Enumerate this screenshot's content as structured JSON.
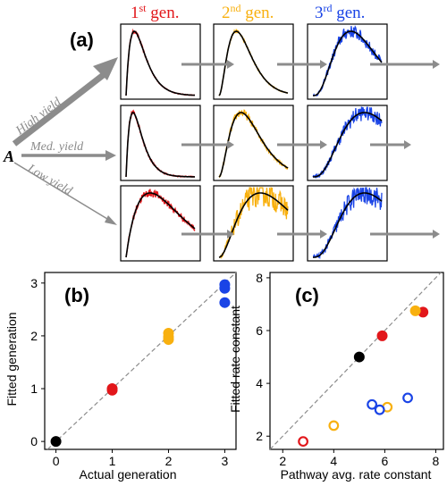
{
  "colors": {
    "gen1": "#e2171b",
    "gen2": "#f8b00f",
    "gen3": "#1a44e6",
    "gen0": "#000000",
    "arrow": "#8c8c8c",
    "diagonal": "#8c8c8c"
  },
  "panel_a": {
    "label": "(a)",
    "start_label": "A",
    "headers": [
      {
        "num": "1",
        "sup": "st",
        "rest": " gen."
      },
      {
        "num": "2",
        "sup": "nd",
        "rest": " gen."
      },
      {
        "num": "3",
        "sup": "rd",
        "rest": " gen."
      }
    ],
    "yields": [
      "High yield",
      "Med. yield",
      "Low yield"
    ]
  },
  "chart_data": [
    {
      "type": "scatter",
      "panel_label": "(b)",
      "xlabel": "Actual generation",
      "ylabel": "Fitted generation",
      "xlim": [
        -0.2,
        3.2
      ],
      "ylim": [
        -0.15,
        3.2
      ],
      "xticks": [
        0,
        1,
        2,
        3
      ],
      "yticks": [
        0,
        1,
        2,
        3
      ],
      "diagonal": true,
      "points": [
        {
          "x": 0,
          "y": 0,
          "gen": "gen0",
          "filled": true
        },
        {
          "x": 1,
          "y": 1.0,
          "gen": "gen1",
          "filled": true
        },
        {
          "x": 1,
          "y": 0.97,
          "gen": "gen1",
          "filled": true
        },
        {
          "x": 2,
          "y": 2.05,
          "gen": "gen2",
          "filled": true
        },
        {
          "x": 2,
          "y": 1.98,
          "gen": "gen2",
          "filled": true
        },
        {
          "x": 2,
          "y": 1.93,
          "gen": "gen2",
          "filled": true
        },
        {
          "x": 3,
          "y": 2.97,
          "gen": "gen3",
          "filled": true
        },
        {
          "x": 3,
          "y": 2.9,
          "gen": "gen3",
          "filled": true
        },
        {
          "x": 3,
          "y": 2.63,
          "gen": "gen3",
          "filled": true
        }
      ]
    },
    {
      "type": "scatter",
      "panel_label": "(c)",
      "xlabel": "Pathway avg. rate constant",
      "ylabel": "Fitted rate constant",
      "xlim": [
        1.5,
        8.3
      ],
      "ylim": [
        1.5,
        8.2
      ],
      "xticks": [
        2,
        4,
        6,
        8
      ],
      "yticks": [
        2,
        4,
        6,
        8
      ],
      "diagonal": true,
      "points": [
        {
          "x": 5.0,
          "y": 5.0,
          "gen": "gen0",
          "filled": true
        },
        {
          "x": 5.9,
          "y": 5.8,
          "gen": "gen1",
          "filled": true
        },
        {
          "x": 7.5,
          "y": 6.7,
          "gen": "gen1",
          "filled": true
        },
        {
          "x": 7.2,
          "y": 6.75,
          "gen": "gen2",
          "filled": true
        },
        {
          "x": 2.8,
          "y": 1.8,
          "gen": "gen1",
          "filled": false
        },
        {
          "x": 4.0,
          "y": 2.4,
          "gen": "gen2",
          "filled": false
        },
        {
          "x": 6.1,
          "y": 3.1,
          "gen": "gen2",
          "filled": false
        },
        {
          "x": 5.5,
          "y": 3.2,
          "gen": "gen3",
          "filled": false
        },
        {
          "x": 5.8,
          "y": 3.0,
          "gen": "gen3",
          "filled": false
        },
        {
          "x": 6.9,
          "y": 3.45,
          "gen": "gen3",
          "filled": false
        }
      ]
    }
  ]
}
